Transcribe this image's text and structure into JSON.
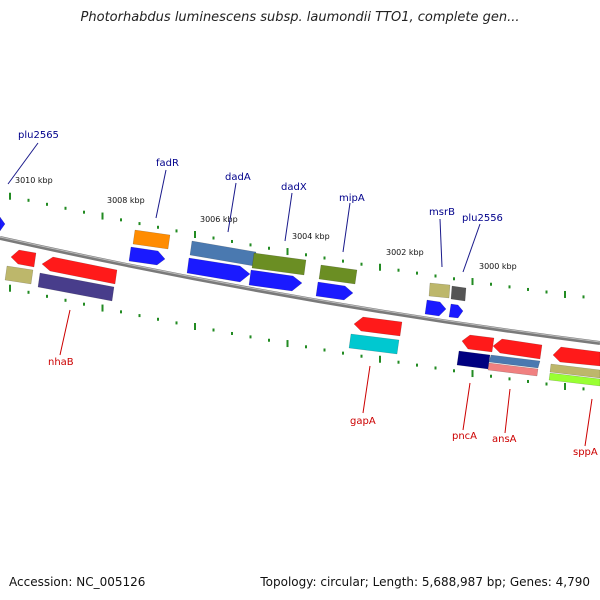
{
  "header": {
    "title": "Photorhabdus luminescens subsp. laumondii TTO1, complete gen..."
  },
  "footer": {
    "accession": "Accession: NC_005126",
    "summary": "Topology: circular; Length: 5,688,987 bp; Genes: 4,790"
  },
  "scale_labels": [
    "3010 kbp",
    "3008 kbp",
    "3006 kbp",
    "3004 kbp",
    "3002 kbp",
    "3000 kbp"
  ],
  "gene_labels": {
    "forward": [
      "plu2565",
      "fadR",
      "dadA",
      "dadX",
      "mipA",
      "msrB",
      "plu2556"
    ],
    "reverse": [
      "nhaB",
      "gapA",
      "pncA",
      "ansA",
      "sppA"
    ]
  },
  "colors": {
    "backbone": "#7a7a7a",
    "tick": "#228B22",
    "forward_label": "#00008B",
    "reverse_label": "#CC0000",
    "red": "#ff1a1a",
    "blue": "#1a1aff",
    "orange": "#ff8c00",
    "olive": "#6b8e23",
    "khaki": "#bdb76b",
    "slate": "#4a79b0",
    "navy": "#000080",
    "darkslate": "#483d8b",
    "cyan": "#00c8d0",
    "pink": "#f08080",
    "lime": "#99ff33",
    "gray": "#555555"
  }
}
